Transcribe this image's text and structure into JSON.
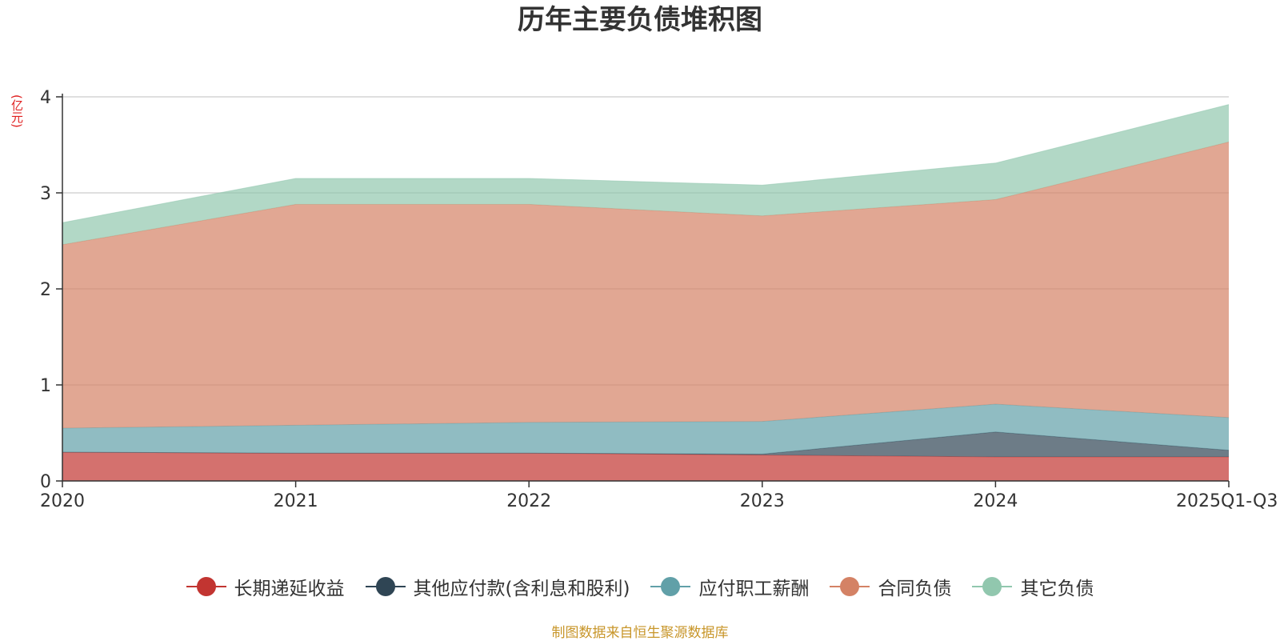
{
  "chart_data": {
    "type": "area",
    "stacked": true,
    "title": "历年主要负债堆积图",
    "y_unit": "(亿元)",
    "categories": [
      "2020",
      "2021",
      "2022",
      "2023",
      "2024",
      "2025Q1-Q3"
    ],
    "ylim": [
      0,
      4
    ],
    "yticks": [
      "0",
      "1",
      "2",
      "3",
      "4"
    ],
    "grid": true,
    "legend_position": "bottom",
    "series": [
      {
        "name": "长期递延收益",
        "color": "#c23531",
        "values": [
          0.3,
          0.29,
          0.29,
          0.27,
          0.25,
          0.25
        ]
      },
      {
        "name": "其他应付款(含利息和股利)",
        "color": "#2f4554",
        "values": [
          0.0,
          0.0,
          0.0,
          0.01,
          0.26,
          0.07
        ]
      },
      {
        "name": "应付职工薪酬",
        "color": "#61a0a8",
        "values": [
          0.25,
          0.29,
          0.32,
          0.34,
          0.29,
          0.34
        ]
      },
      {
        "name": "合同负债",
        "color": "#d48265",
        "values": [
          1.91,
          2.3,
          2.27,
          2.14,
          2.13,
          2.87
        ]
      },
      {
        "name": "其它负债",
        "color": "#91c7ae",
        "values": [
          0.23,
          0.27,
          0.27,
          0.32,
          0.38,
          0.39
        ]
      }
    ]
  },
  "footer": "制图数据来自恒生聚源数据库"
}
